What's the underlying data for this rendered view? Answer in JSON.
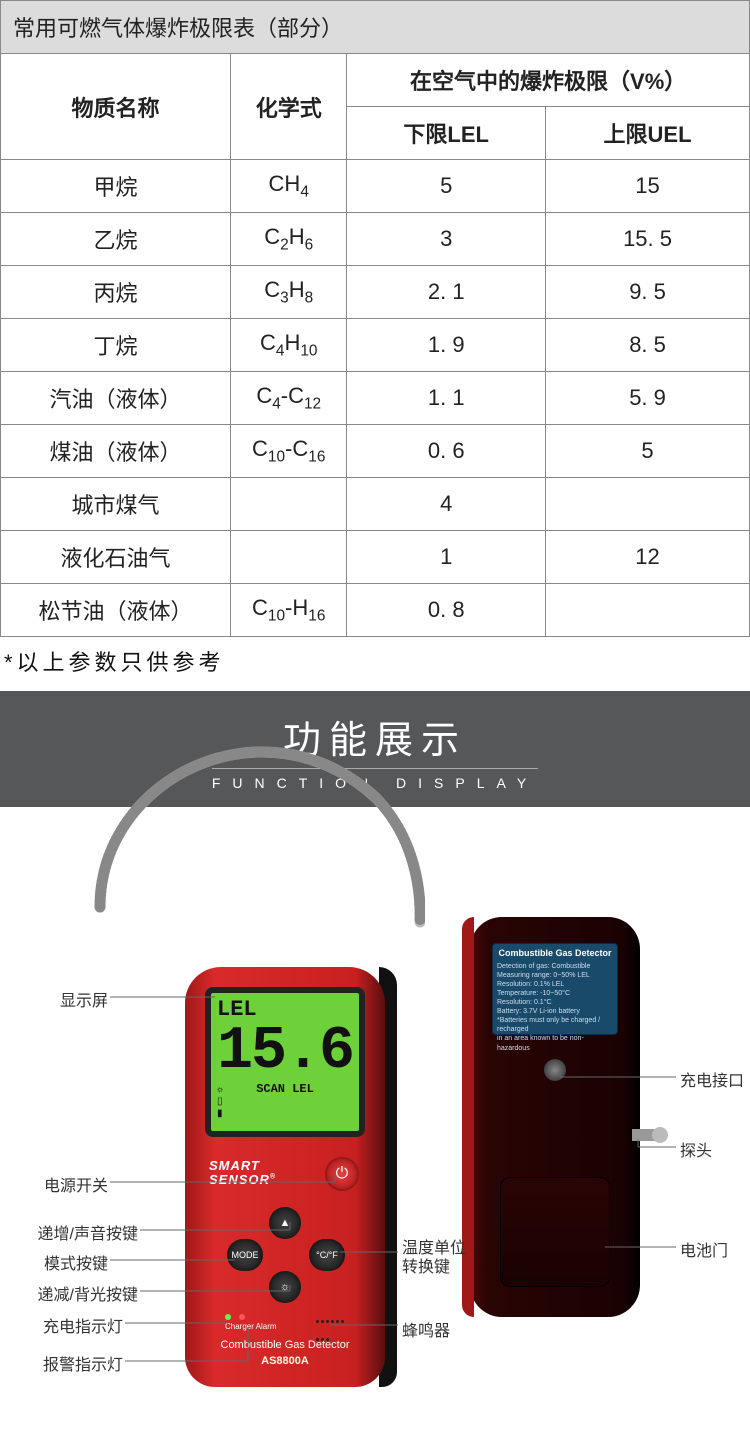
{
  "table": {
    "title": "常用可燃气体爆炸极限表（部分）",
    "header": {
      "substance": "物质名称",
      "formula": "化学式",
      "limits_group": "在空气中的爆炸极限（V%）",
      "lel": "下限LEL",
      "uel": "上限UEL"
    },
    "rows": [
      {
        "name": "甲烷",
        "formula": "CH<sub>4</sub>",
        "lel": "5",
        "uel": "15"
      },
      {
        "name": "乙烷",
        "formula": "C<sub>2</sub>H<sub>6</sub>",
        "lel": "3",
        "uel": "15. 5"
      },
      {
        "name": "丙烷",
        "formula": "C<sub>3</sub>H<sub>8</sub>",
        "lel": "2. 1",
        "uel": "9. 5"
      },
      {
        "name": "丁烷",
        "formula": "C<sub>4</sub>H<sub>10</sub>",
        "lel": "1. 9",
        "uel": "8. 5"
      },
      {
        "name": "汽油（液体）",
        "formula": "C<sub>4</sub>-C<sub>12</sub>",
        "lel": "1. 1",
        "uel": "5. 9"
      },
      {
        "name": "煤油（液体）",
        "formula": "C<sub>10</sub>-C<sub>16</sub>",
        "lel": "0. 6",
        "uel": "5"
      },
      {
        "name": "城市煤气",
        "formula": "",
        "lel": "4",
        "uel": ""
      },
      {
        "name": "液化石油气",
        "formula": "",
        "lel": "1",
        "uel": "12"
      },
      {
        "name": "松节油（液体）",
        "formula": "C<sub>10</sub>-H<sub>16</sub>",
        "lel": "0. 8",
        "uel": ""
      }
    ],
    "note": "*以上参数只供参考"
  },
  "banner": {
    "title_cn": "功能展示",
    "title_en": "FUNCTION DISPLAY"
  },
  "labels": {
    "display": "显示屏",
    "power": "电源开关",
    "inc_sound": "递增/声音按键",
    "mode": "模式按键",
    "dec_backlight": "递减/背光按键",
    "charge_led": "充电指示灯",
    "alarm_led": "报警指示灯",
    "temp_unit_1": "温度单位",
    "temp_unit_2": "转换键",
    "buzzer": "蜂鸣器",
    "charge_port": "充电接口",
    "probe": "探头",
    "battery_door": "电池门"
  },
  "device": {
    "brand": "SMART\nSENSOR",
    "screen_lel": "LEL",
    "screen_reading": "15.6",
    "screen_scan": "SCAN LEL",
    "btn_mode": "MODE",
    "btn_cf": "°C/°F",
    "leds_text": "Charger Alarm",
    "bottom_text": "Combustible Gas Detector",
    "model": "AS8800A",
    "back_title": "Combustible Gas Detector",
    "back_lines": [
      "Detection of gas: Combustible",
      "Measuring range: 0~50% LEL",
      "Resolution: 0.1% LEL",
      "Temperature: -10~50°C",
      "Resolution: 0.1°C",
      "Battery: 3.7V Li-ion battery",
      "*Batteries must only be charged / recharged",
      "in an area known to be non-hazardous"
    ]
  },
  "colors": {
    "table_border": "#888888",
    "header_bg": "#dcdcdc",
    "banner_bg": "#555759",
    "device_red": "#c82020",
    "screen_green": "#6fd13a"
  }
}
